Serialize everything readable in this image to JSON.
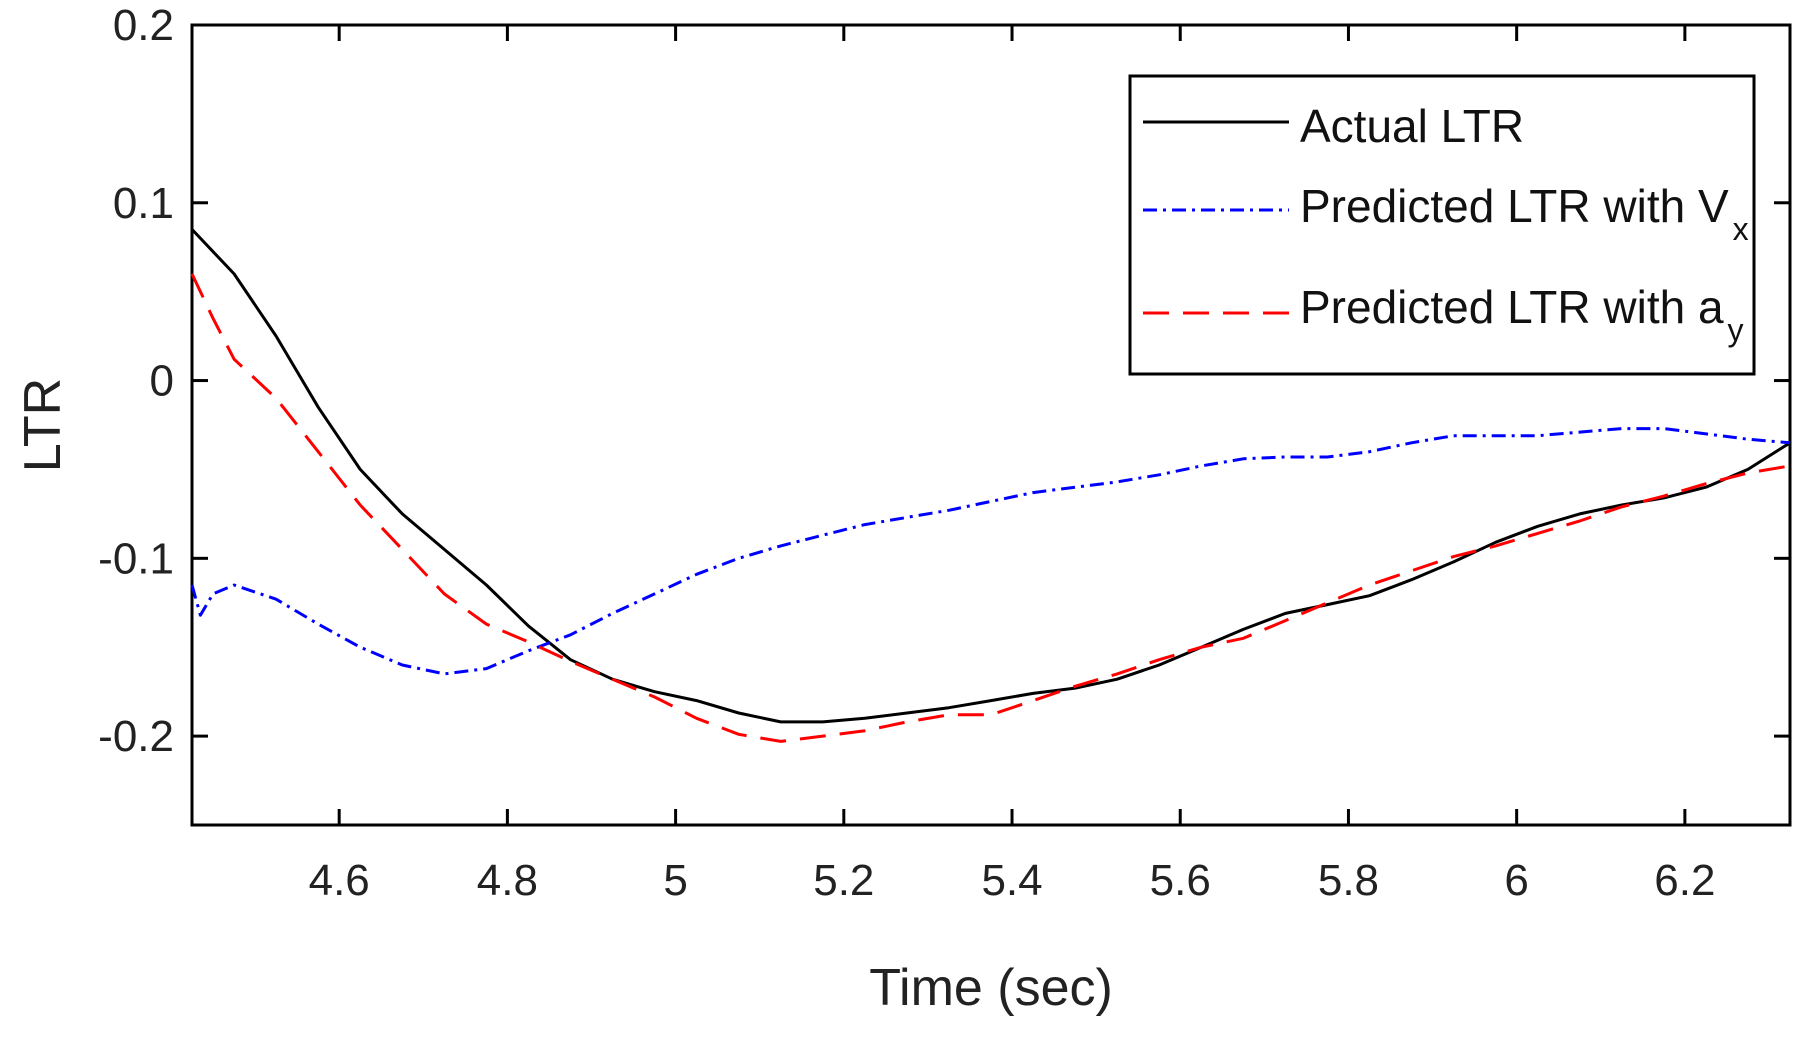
{
  "chart_data": {
    "type": "line",
    "title": "",
    "xlabel": "Time (sec)",
    "ylabel": "LTR",
    "xlim": [
      4.425,
      6.325
    ],
    "ylim": [
      -0.25,
      0.2
    ],
    "xticks": [
      4.6,
      4.8,
      5,
      5.2,
      5.4,
      5.6,
      5.8,
      6,
      6.2
    ],
    "xtick_labels": [
      "4.6",
      "4.8",
      "5",
      "5.2",
      "5.4",
      "5.6",
      "5.8",
      "6",
      "6.2"
    ],
    "yticks": [
      0.2,
      0.1,
      0,
      -0.1,
      -0.2
    ],
    "ytick_labels": [
      "0.2",
      "0.1",
      "0",
      "-0.1",
      "-0.2"
    ],
    "grid": false,
    "legend_position": "top-right",
    "series": [
      {
        "name": "Actual LTR",
        "legend_main": "Actual LTR",
        "legend_sub": "",
        "color": "#000000",
        "style": "solid",
        "x": [
          4.425,
          4.475,
          4.525,
          4.575,
          4.625,
          4.675,
          4.725,
          4.775,
          4.825,
          4.875,
          4.925,
          4.975,
          5.025,
          5.075,
          5.125,
          5.175,
          5.225,
          5.275,
          5.325,
          5.375,
          5.425,
          5.475,
          5.525,
          5.575,
          5.625,
          5.675,
          5.725,
          5.775,
          5.825,
          5.875,
          5.925,
          5.975,
          6.025,
          6.075,
          6.125,
          6.175,
          6.225,
          6.275,
          6.325
        ],
        "y": [
          0.085,
          0.06,
          0.025,
          -0.015,
          -0.05,
          -0.075,
          -0.095,
          -0.115,
          -0.138,
          -0.157,
          -0.168,
          -0.175,
          -0.18,
          -0.187,
          -0.192,
          -0.192,
          -0.19,
          -0.187,
          -0.184,
          -0.18,
          -0.176,
          -0.173,
          -0.168,
          -0.16,
          -0.15,
          -0.14,
          -0.131,
          -0.126,
          -0.121,
          -0.112,
          -0.102,
          -0.091,
          -0.082,
          -0.075,
          -0.07,
          -0.066,
          -0.06,
          -0.05,
          -0.035
        ]
      },
      {
        "name": "Predicted LTR with Vx",
        "legend_main": "Predicted LTR with V",
        "legend_sub": "x",
        "color": "#0000ff",
        "style": "dashdot",
        "x": [
          4.425,
          4.435,
          4.45,
          4.475,
          4.525,
          4.575,
          4.625,
          4.675,
          4.725,
          4.775,
          4.825,
          4.875,
          4.925,
          4.975,
          5.025,
          5.075,
          5.125,
          5.175,
          5.225,
          5.275,
          5.325,
          5.375,
          5.425,
          5.475,
          5.525,
          5.575,
          5.625,
          5.675,
          5.725,
          5.775,
          5.825,
          5.875,
          5.925,
          5.975,
          6.025,
          6.075,
          6.125,
          6.175,
          6.225,
          6.275,
          6.325
        ],
        "y": [
          -0.115,
          -0.132,
          -0.12,
          -0.115,
          -0.123,
          -0.137,
          -0.15,
          -0.16,
          -0.165,
          -0.162,
          -0.152,
          -0.143,
          -0.131,
          -0.12,
          -0.109,
          -0.1,
          -0.093,
          -0.087,
          -0.081,
          -0.077,
          -0.073,
          -0.068,
          -0.063,
          -0.06,
          -0.057,
          -0.053,
          -0.048,
          -0.044,
          -0.043,
          -0.043,
          -0.04,
          -0.035,
          -0.031,
          -0.031,
          -0.031,
          -0.029,
          -0.027,
          -0.027,
          -0.03,
          -0.033,
          -0.035
        ]
      },
      {
        "name": "Predicted LTR with ay",
        "legend_main": "Predicted LTR with a",
        "legend_sub": "y",
        "color": "#ff0000",
        "style": "dashed",
        "x": [
          4.425,
          4.45,
          4.475,
          4.525,
          4.575,
          4.625,
          4.675,
          4.725,
          4.775,
          4.825,
          4.875,
          4.925,
          4.975,
          5.025,
          5.075,
          5.125,
          5.175,
          5.225,
          5.275,
          5.325,
          5.375,
          5.425,
          5.475,
          5.525,
          5.575,
          5.625,
          5.675,
          5.725,
          5.775,
          5.825,
          5.875,
          5.925,
          5.975,
          6.025,
          6.075,
          6.125,
          6.175,
          6.225,
          6.275,
          6.325
        ],
        "y": [
          0.06,
          0.035,
          0.012,
          -0.01,
          -0.04,
          -0.07,
          -0.095,
          -0.12,
          -0.137,
          -0.147,
          -0.158,
          -0.168,
          -0.178,
          -0.19,
          -0.199,
          -0.203,
          -0.2,
          -0.197,
          -0.192,
          -0.188,
          -0.188,
          -0.18,
          -0.172,
          -0.165,
          -0.157,
          -0.15,
          -0.145,
          -0.135,
          -0.125,
          -0.115,
          -0.107,
          -0.099,
          -0.093,
          -0.086,
          -0.079,
          -0.071,
          -0.065,
          -0.058,
          -0.052,
          -0.048
        ]
      }
    ]
  }
}
